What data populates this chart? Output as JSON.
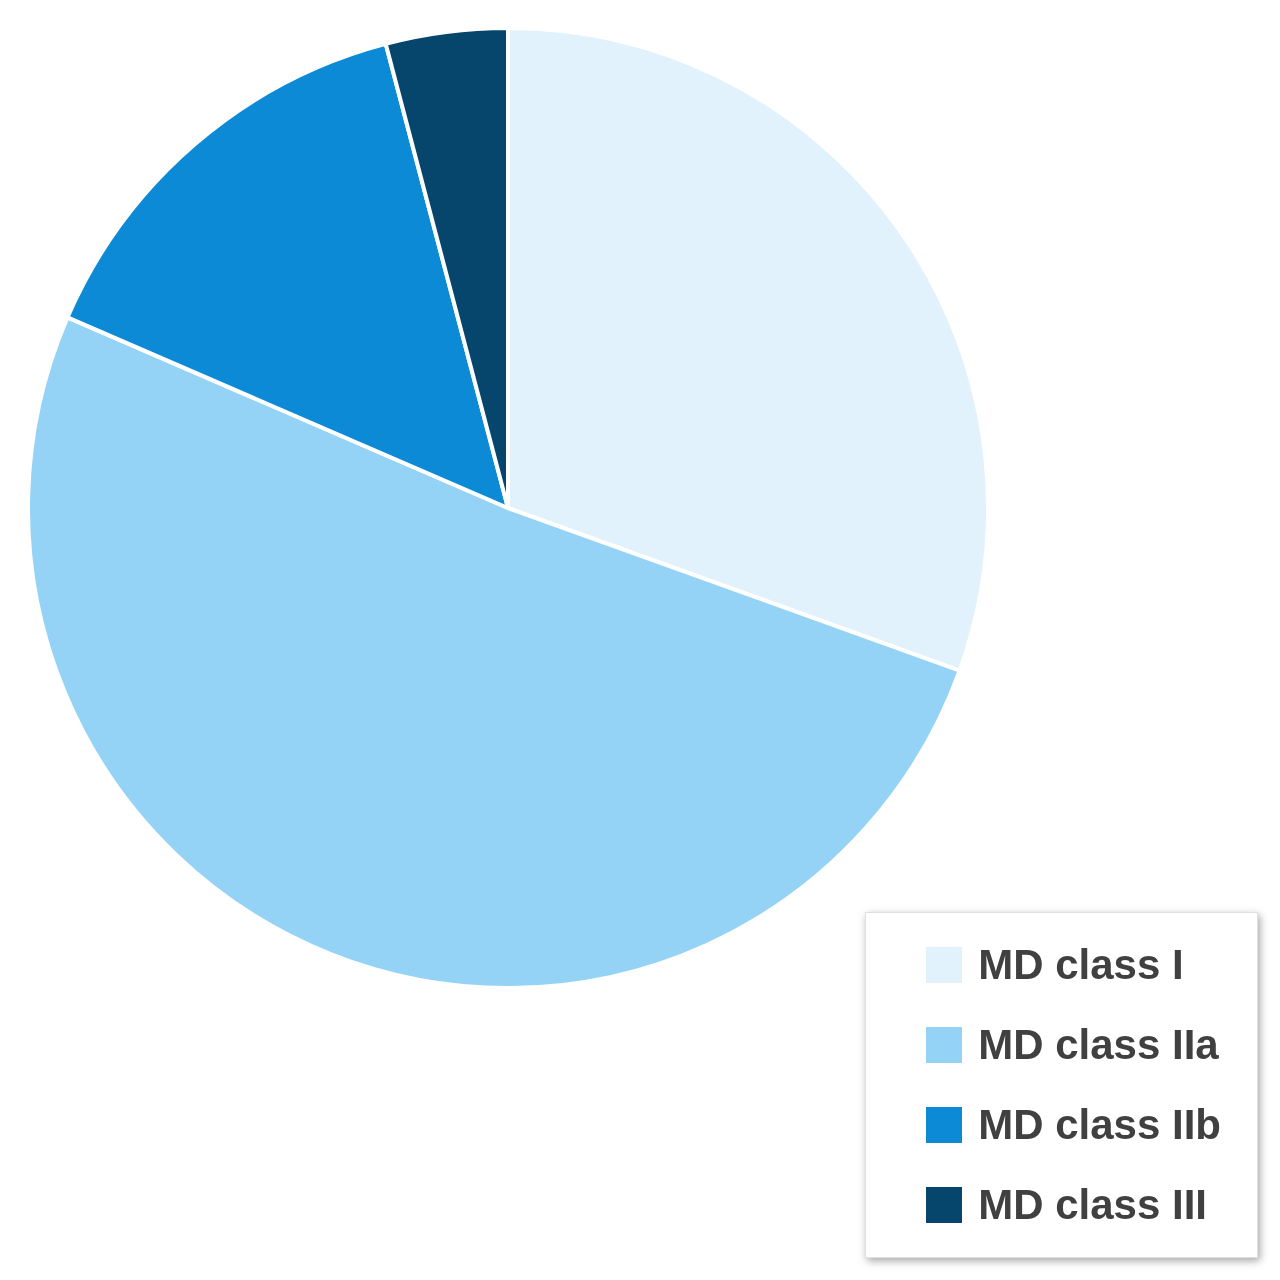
{
  "chart_data": {
    "type": "pie",
    "categories": [
      "MD class I",
      "MD class IIa",
      "MD class IIb",
      "MD class III"
    ],
    "values": [
      30.5,
      51.0,
      14.4,
      4.1
    ],
    "colors": [
      "#e1f2fc",
      "#94d3f6",
      "#0d8ad6",
      "#07466c"
    ],
    "legend": "bottom right"
  }
}
